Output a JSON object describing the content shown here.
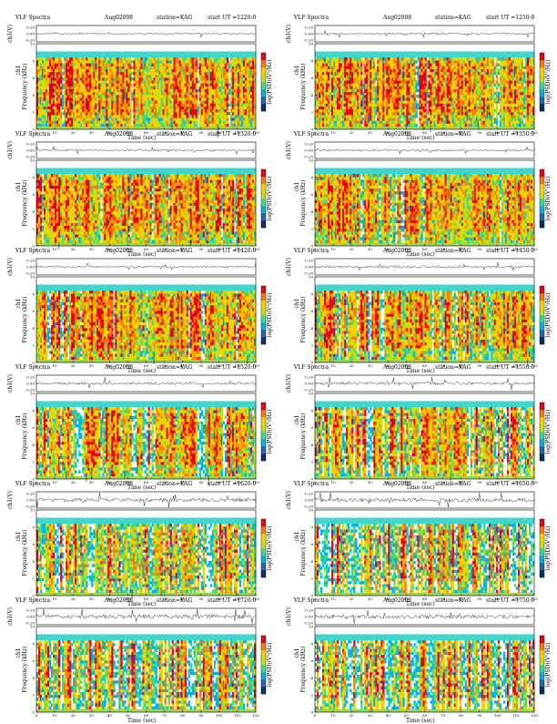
{
  "chart_data": {
    "type": "heatmap",
    "figure_title": "VLF Spectra",
    "date": "Aug02008",
    "station": "station=KAG",
    "start_prefix": "start  UT  =",
    "waveform_label": "ch1(V)",
    "spectrogram_label": "ch1",
    "ylabel": "Frequency  (kHz)",
    "xlabel": "Time  (sec)",
    "colorbar_label": "log(PSD)(V²/Hz)",
    "x_ticks": [
      0,
      10,
      20,
      30,
      40,
      50,
      60,
      70,
      80,
      90,
      100,
      110,
      120
    ],
    "y_ticks": [
      0,
      2,
      4,
      6,
      8,
      10
    ],
    "waveform_ticks": [
      "0.20",
      "0.00",
      "-0.20"
    ],
    "xlim": [
      0,
      120
    ],
    "ylim": [
      0,
      10
    ],
    "colormap": [
      "#08306b",
      "#2166ac",
      "#00b4e8",
      "#3ddc84",
      "#c8e000",
      "#ffd000",
      "#ff7a00",
      "#e8001c"
    ],
    "panels": [
      {
        "start_ut": "1220:0",
        "density": 0.92
      },
      {
        "start_ut": "1250:0",
        "density": 0.9
      },
      {
        "start_ut": "1320:0",
        "density": 0.88
      },
      {
        "start_ut": "1350:0",
        "density": 0.88
      },
      {
        "start_ut": "1420:0",
        "density": 0.85
      },
      {
        "start_ut": "1450:0",
        "density": 0.8
      },
      {
        "start_ut": "1520:0",
        "density": 0.74
      },
      {
        "start_ut": "1550:0",
        "density": 0.7
      },
      {
        "start_ut": "1620:0",
        "density": 0.5
      },
      {
        "start_ut": "1650:0",
        "density": 0.46
      },
      {
        "start_ut": "1720:0",
        "density": 0.45
      },
      {
        "start_ut": "1750:0",
        "density": 0.48
      }
    ]
  }
}
